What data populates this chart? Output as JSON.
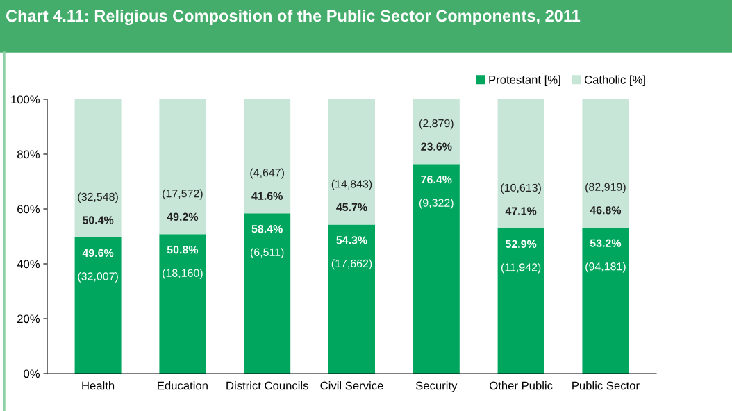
{
  "chart_data": {
    "type": "bar",
    "title": "Chart 4.11: Religious Composition of the Public Sector Components, 2011",
    "categories": [
      "Health",
      "Education",
      "District Councils",
      "Civil Service",
      "Security",
      "Other Public",
      "Public Sector"
    ],
    "stacked": true,
    "legend": "top right",
    "grid": false,
    "ylim": [
      0,
      100
    ],
    "yticks": [
      {
        "value": 0,
        "label": "0%"
      },
      {
        "value": 20,
        "label": "20%"
      },
      {
        "value": 40,
        "label": "40%"
      },
      {
        "value": 60,
        "label": "60%"
      },
      {
        "value": 80,
        "label": "80%"
      },
      {
        "value": 100,
        "label": "100%"
      }
    ],
    "series": [
      {
        "name": "Protestant [%]",
        "color": "#00a65d",
        "values": [
          49.6,
          50.8,
          58.4,
          54.3,
          76.4,
          52.9,
          53.2
        ],
        "value_labels": [
          "49.6%\n(32,007)",
          "50.8%\n(18,160)",
          "58.4%\n(6,511)",
          "54.3%\n(17,662)",
          "76.4%\n(9,322)",
          "52.9%\n(11,942)",
          "53.2%\n(94,181)"
        ]
      },
      {
        "name": "Catholic [%]",
        "color": "#c7e6d7",
        "values": [
          50.4,
          49.2,
          41.6,
          45.7,
          23.6,
          47.1,
          46.8
        ],
        "value_labels": [
          "(32,548)\n50.4%",
          "(17,572)\n49.2%",
          "(4,647)\n41.6%",
          "(14,843)\n45.7%",
          "(2,879)\n23.6%",
          "(10,613)\n47.1%",
          "(82,919)\n46.8%"
        ]
      }
    ]
  }
}
